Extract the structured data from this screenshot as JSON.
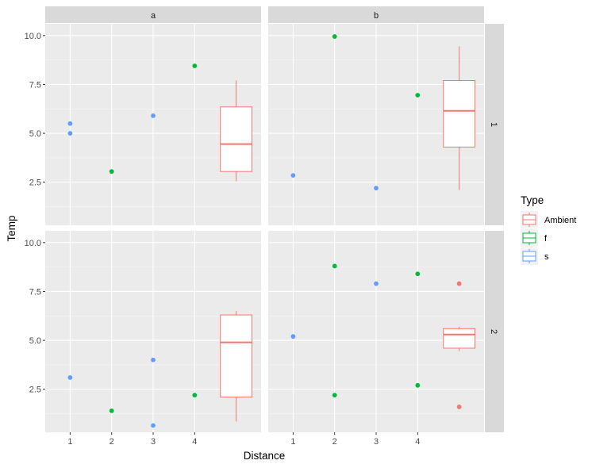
{
  "chart_data": {
    "type": "scatter",
    "xlabel": "Distance",
    "ylabel": "Temp",
    "x_ticks": [
      "1",
      "2",
      "3",
      "4"
    ],
    "y_ticks": [
      "2.5",
      "5.0",
      "7.5",
      "10.0"
    ],
    "ylim": [
      0.3,
      10.6
    ],
    "xlim": [
      0.4,
      5.6
    ],
    "col_facets": [
      "a",
      "b"
    ],
    "row_facets": [
      "1",
      "2"
    ],
    "legend": {
      "title": "Type",
      "position": "right",
      "entries": [
        {
          "label": "Ambient",
          "color": "#F8766D"
        },
        {
          "label": "f",
          "color": "#00BA38"
        },
        {
          "label": "s",
          "color": "#619CFF"
        }
      ]
    },
    "panels": [
      {
        "col": "a",
        "row": "1",
        "points": [
          {
            "x": 1,
            "y": 5.5,
            "type": "s"
          },
          {
            "x": 1,
            "y": 5.0,
            "type": "s"
          },
          {
            "x": 2,
            "y": 3.05,
            "type": "f"
          },
          {
            "x": 3,
            "y": 5.9,
            "type": "s"
          },
          {
            "x": 4,
            "y": 8.45,
            "type": "f"
          }
        ],
        "boxplot": {
          "x": 5,
          "lower": 2.55,
          "q1": 3.05,
          "median": 4.45,
          "q3": 6.35,
          "upper": 7.7,
          "outliers": []
        }
      },
      {
        "col": "b",
        "row": "1",
        "points": [
          {
            "x": 1,
            "y": 2.85,
            "type": "s"
          },
          {
            "x": 2,
            "y": 9.95,
            "type": "f"
          },
          {
            "x": 3,
            "y": 2.2,
            "type": "s"
          },
          {
            "x": 4,
            "y": 6.95,
            "type": "f"
          }
        ],
        "boxplot": {
          "x": 5,
          "lower": 2.1,
          "q1": 4.3,
          "median": 6.15,
          "q3": 7.7,
          "upper": 9.45,
          "outliers": []
        }
      },
      {
        "col": "a",
        "row": "2",
        "points": [
          {
            "x": 1,
            "y": 3.1,
            "type": "s"
          },
          {
            "x": 2,
            "y": 1.4,
            "type": "f"
          },
          {
            "x": 3,
            "y": 4.0,
            "type": "s"
          },
          {
            "x": 3,
            "y": 0.65,
            "type": "s"
          },
          {
            "x": 4,
            "y": 2.2,
            "type": "f"
          }
        ],
        "boxplot": {
          "x": 5,
          "lower": 0.85,
          "q1": 2.1,
          "median": 4.9,
          "q3": 6.3,
          "upper": 6.5,
          "outliers": []
        }
      },
      {
        "col": "b",
        "row": "2",
        "points": [
          {
            "x": 1,
            "y": 5.2,
            "type": "s"
          },
          {
            "x": 2,
            "y": 8.8,
            "type": "f"
          },
          {
            "x": 2,
            "y": 2.2,
            "type": "f"
          },
          {
            "x": 3,
            "y": 7.9,
            "type": "s"
          },
          {
            "x": 4,
            "y": 8.4,
            "type": "f"
          },
          {
            "x": 4,
            "y": 2.7,
            "type": "f"
          }
        ],
        "boxplot": {
          "x": 5,
          "lower": 4.45,
          "q1": 4.6,
          "median": 5.3,
          "q3": 5.6,
          "upper": 5.7,
          "outliers": [
            7.9,
            1.6
          ]
        }
      }
    ]
  }
}
